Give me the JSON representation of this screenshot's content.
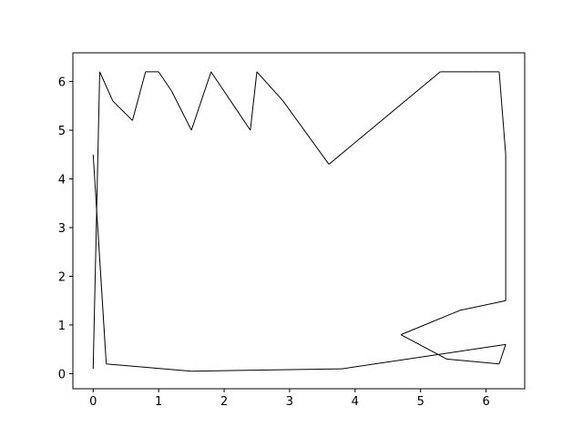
{
  "chart_data": {
    "type": "line",
    "title": "",
    "xlabel": "",
    "ylabel": "",
    "xlim": [
      -0.31,
      6.59
    ],
    "ylim": [
      -0.31,
      6.59
    ],
    "x_ticks": [
      0,
      1,
      2,
      3,
      4,
      5,
      6
    ],
    "x_tick_labels": [
      "0",
      "1",
      "2",
      "3",
      "4",
      "5",
      "6"
    ],
    "y_ticks": [
      0,
      1,
      2,
      3,
      4,
      5,
      6
    ],
    "y_tick_labels": [
      "0",
      "1",
      "2",
      "3",
      "4",
      "5",
      "6"
    ],
    "grid": false,
    "legend": "none",
    "line_color": "#000000",
    "series": [
      {
        "description_free": true,
        "segments": [
          [
            [
              0.0,
              0.1
            ],
            [
              0.1,
              6.2
            ]
          ],
          [
            [
              0.1,
              6.2
            ],
            [
              0.3,
              5.6
            ]
          ],
          [
            [
              0.3,
              5.6
            ],
            [
              0.6,
              5.2
            ]
          ],
          [
            [
              0.6,
              5.2
            ],
            [
              0.8,
              6.2
            ]
          ],
          [
            [
              0.8,
              6.2
            ],
            [
              1.0,
              6.2
            ]
          ],
          [
            [
              1.0,
              6.2
            ],
            [
              1.2,
              5.8
            ]
          ],
          [
            [
              1.2,
              5.8
            ],
            [
              1.5,
              5.0
            ]
          ],
          [
            [
              1.5,
              5.0
            ],
            [
              1.8,
              6.2
            ]
          ],
          [
            [
              1.8,
              6.2
            ],
            [
              2.0,
              5.8
            ]
          ],
          [
            [
              2.0,
              5.8
            ],
            [
              2.4,
              5.0
            ]
          ],
          [
            [
              2.4,
              5.0
            ],
            [
              2.5,
              6.2
            ]
          ],
          [
            [
              2.5,
              6.2
            ],
            [
              2.9,
              5.6
            ]
          ],
          [
            [
              2.9,
              5.6
            ],
            [
              3.6,
              4.3
            ]
          ],
          [
            [
              3.6,
              4.3
            ],
            [
              5.3,
              6.2
            ]
          ],
          [
            [
              5.3,
              6.2
            ],
            [
              5.8,
              6.2
            ]
          ],
          [
            [
              5.8,
              6.2
            ],
            [
              6.2,
              6.2
            ]
          ],
          [
            [
              6.2,
              6.2
            ],
            [
              6.3,
              4.5
            ]
          ],
          [
            [
              6.3,
              4.5
            ],
            [
              6.3,
              1.5
            ]
          ],
          [
            [
              6.3,
              1.5
            ],
            [
              5.6,
              1.3
            ]
          ],
          [
            [
              5.6,
              1.3
            ],
            [
              4.7,
              0.8
            ]
          ],
          [
            [
              4.7,
              0.8
            ],
            [
              5.4,
              0.3
            ]
          ],
          [
            [
              5.4,
              0.3
            ],
            [
              6.2,
              0.2
            ]
          ],
          [
            [
              6.2,
              0.2
            ],
            [
              6.3,
              0.6
            ]
          ],
          [
            [
              6.3,
              0.6
            ],
            [
              3.8,
              0.1
            ]
          ],
          [
            [
              3.8,
              0.1
            ],
            [
              1.5,
              0.05
            ]
          ],
          [
            [
              1.5,
              0.05
            ],
            [
              0.2,
              0.2
            ]
          ],
          [
            [
              0.2,
              0.2
            ],
            [
              0.0,
              4.5
            ]
          ]
        ]
      }
    ]
  }
}
